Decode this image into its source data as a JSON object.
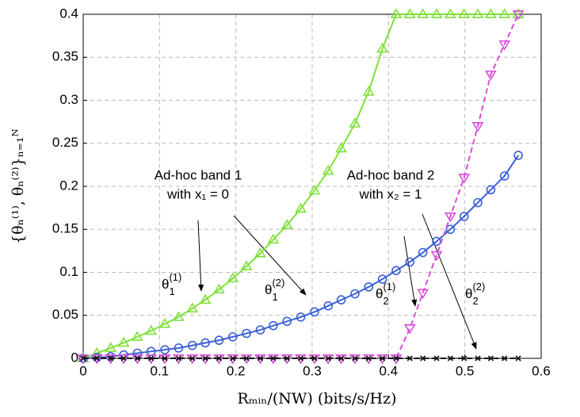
{
  "chart_data": {
    "type": "line",
    "x_label": "Rₘᵢₙ/(NW) (bits/s/Hz)",
    "y_label": "{θₙ⁽¹⁾, θₙ⁽²⁾}ₙ₌₁ᴺ",
    "x": [
      0,
      0.018,
      0.036,
      0.053,
      0.071,
      0.089,
      0.107,
      0.125,
      0.143,
      0.16,
      0.178,
      0.196,
      0.214,
      0.232,
      0.249,
      0.267,
      0.285,
      0.303,
      0.321,
      0.338,
      0.356,
      0.374,
      0.392,
      0.41,
      0.428,
      0.445,
      0.463,
      0.481,
      0.499,
      0.517,
      0.534,
      0.552,
      0.57
    ],
    "series": [
      {
        "color": "#7fe03a",
        "marker": "triangle-up",
        "dash": false,
        "values": [
          0,
          0.006,
          0.012,
          0.018,
          0.025,
          0.032,
          0.04,
          0.048,
          0.058,
          0.068,
          0.08,
          0.093,
          0.107,
          0.122,
          0.138,
          0.155,
          0.174,
          0.195,
          0.218,
          0.244,
          0.273,
          0.31,
          0.36,
          0.4,
          0.4,
          0.4,
          0.4,
          0.4,
          0.4,
          0.4,
          0.4,
          0.4,
          0.4
        ]
      },
      {
        "color": "#3b5fd6",
        "marker": "circle",
        "dash": false,
        "values": [
          0,
          0.001,
          0.002,
          0.004,
          0.006,
          0.008,
          0.01,
          0.012,
          0.015,
          0.018,
          0.021,
          0.025,
          0.029,
          0.033,
          0.038,
          0.043,
          0.048,
          0.054,
          0.061,
          0.068,
          0.075,
          0.083,
          0.092,
          0.102,
          0.112,
          0.123,
          0.136,
          0.15,
          0.165,
          0.181,
          0.196,
          0.212,
          0.236
        ]
      },
      {
        "color": "#d94fd9",
        "marker": "triangle-down",
        "dash": true,
        "values": [
          0,
          0,
          0,
          0,
          0,
          0,
          0,
          0,
          0,
          0,
          0,
          0,
          0,
          0,
          0,
          0,
          0,
          0,
          0,
          0,
          0,
          0,
          0,
          0,
          0.035,
          0.076,
          0.12,
          0.165,
          0.21,
          0.27,
          0.33,
          0.365,
          0.4
        ]
      },
      {
        "color": "#111111",
        "marker": "x",
        "dash": true,
        "values": [
          0,
          0,
          0,
          0,
          0,
          0,
          0,
          0,
          0,
          0,
          0,
          0,
          0,
          0,
          0,
          0,
          0,
          0,
          0,
          0,
          0,
          0,
          0,
          0,
          0,
          0,
          0,
          0,
          0,
          0,
          0,
          0,
          0
        ]
      }
    ],
    "xlim": [
      0,
      0.6
    ],
    "xticks": [
      0,
      0.1,
      0.2,
      0.3,
      0.4,
      0.5,
      0.6
    ],
    "ylim": [
      0,
      0.4
    ],
    "yticks": [
      0,
      0.05,
      0.1,
      0.15,
      0.2,
      0.25,
      0.3,
      0.35,
      0.4
    ],
    "grid": true,
    "annotations": [
      {
        "lines": [
          "Ad-hoc band 1",
          "with x₁ = 0"
        ]
      },
      {
        "lines": [
          "Ad-hoc band 2",
          "with x₂ = 1"
        ]
      }
    ],
    "curve_labels": [
      {
        "symbol": "θ",
        "sub": "1",
        "sup": "(1)"
      },
      {
        "symbol": "θ",
        "sub": "1",
        "sup": "(2)"
      },
      {
        "symbol": "θ",
        "sub": "2",
        "sup": "(1)"
      },
      {
        "symbol": "θ",
        "sub": "2",
        "sup": "(2)"
      }
    ]
  }
}
